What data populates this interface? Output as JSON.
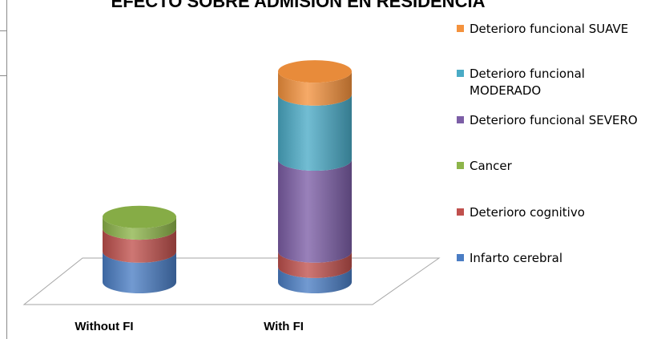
{
  "chart_data": {
    "type": "bar",
    "stacked": true,
    "style": "3d-cylinder",
    "title": "EFECTO SOBRE ADMISIÓN EN RESIDENCIA",
    "categories": [
      "Without FI",
      "With FI"
    ],
    "series": [
      {
        "name": "Infarto cerebral",
        "color": "#4a7dc4",
        "values": [
          8,
          4
        ]
      },
      {
        "name": "Deterioro cognitivo",
        "color": "#c0504d",
        "values": [
          6,
          4
        ]
      },
      {
        "name": "Cancer",
        "color": "#8db54a",
        "values": [
          3,
          0
        ]
      },
      {
        "name": "Deterioro funcional SEVERO",
        "color": "#7c5ea6",
        "values": [
          0,
          24
        ]
      },
      {
        "name": "Deterioro funcional MODERADO",
        "color": "#4aabc6",
        "values": [
          0,
          17
        ]
      },
      {
        "name": "Deterioro funcional SUAVE",
        "color": "#f4923d",
        "values": [
          0,
          6
        ]
      }
    ],
    "legend": {
      "position": "right",
      "entries": [
        {
          "label": "Deterioro funcional SUAVE",
          "color": "#f4923d"
        },
        {
          "label": "Deterioro funcional MODERADO",
          "lines": [
            "Deterioro funcional",
            "MODERADO"
          ],
          "color": "#4aabc6"
        },
        {
          "label": "Deterioro funcional SEVERO",
          "color": "#7c5ea6"
        },
        {
          "label": "Cancer",
          "color": "#8db54a"
        },
        {
          "label": "Deterioro cognitivo",
          "color": "#c0504d"
        },
        {
          "label": "Infarto cerebral",
          "color": "#4a7dc4"
        }
      ]
    }
  }
}
